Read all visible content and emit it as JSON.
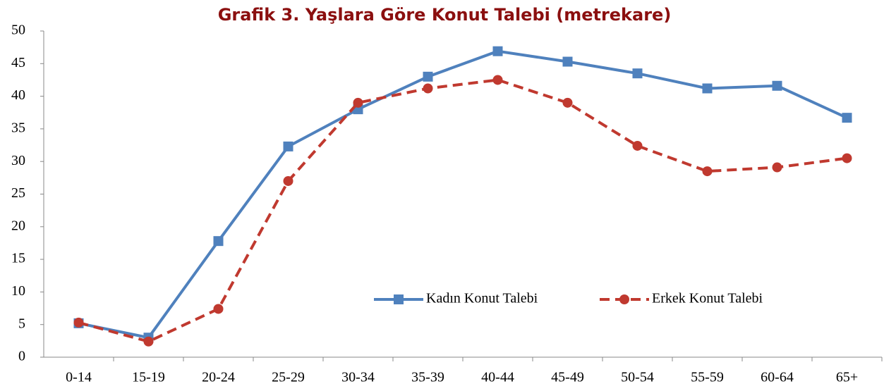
{
  "chart_data": {
    "type": "line",
    "title": "Grafik 3. Yaşlara Göre Konut Talebi (metrekare)",
    "categories": [
      "0-14",
      "15-19",
      "20-24",
      "25-29",
      "30-34",
      "35-39",
      "40-44",
      "45-49",
      "50-54",
      "55-59",
      "60-64",
      "65+"
    ],
    "series": [
      {
        "name": "Kadın Konut Talebi",
        "color": "#4f81bd",
        "marker": "square",
        "dash": false,
        "values": [
          5.2,
          3.0,
          17.8,
          32.3,
          38.0,
          43.0,
          46.9,
          45.3,
          43.5,
          41.2,
          41.6,
          36.7
        ]
      },
      {
        "name": "Erkek Konut Talebi",
        "color": "#c0392f",
        "marker": "circle",
        "dash": true,
        "values": [
          5.3,
          2.4,
          7.4,
          27.0,
          39.0,
          41.2,
          42.5,
          39.0,
          32.4,
          28.5,
          29.1,
          30.5
        ]
      }
    ],
    "ylim": [
      0,
      50
    ],
    "yticks": [
      0,
      5,
      10,
      15,
      20,
      25,
      30,
      35,
      40,
      45,
      50
    ],
    "grid": false
  }
}
